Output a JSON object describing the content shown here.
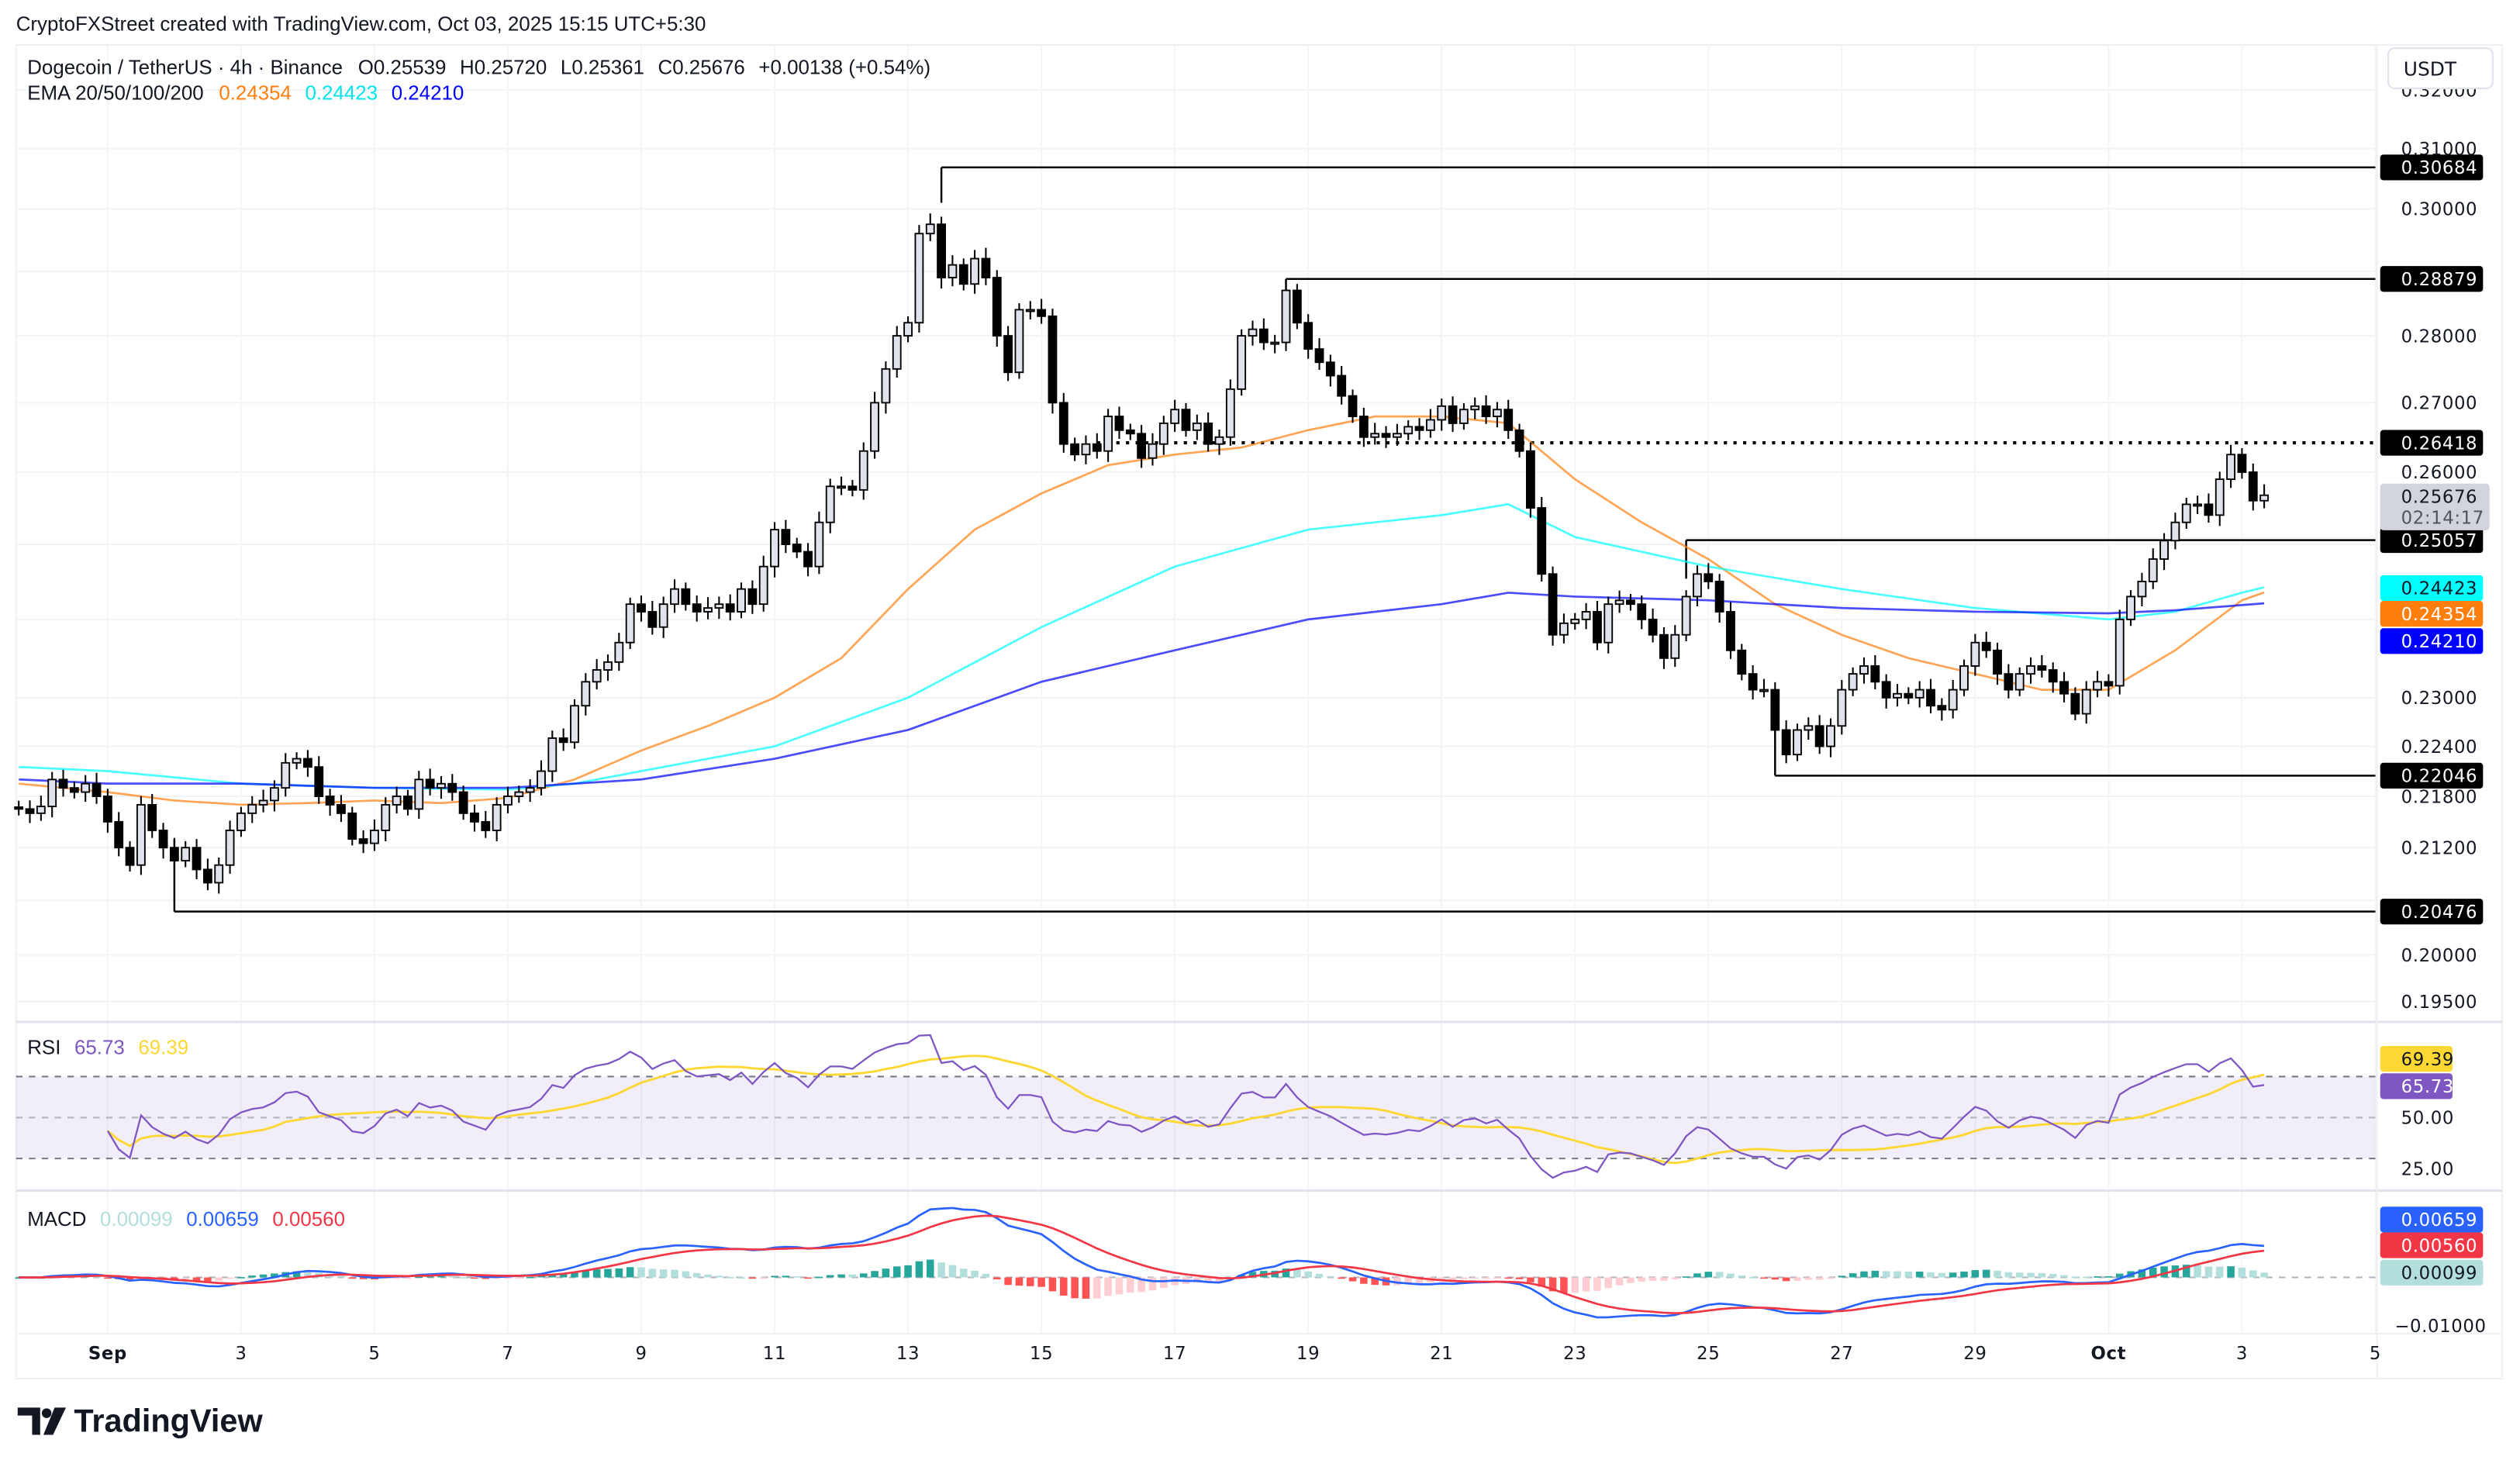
{
  "watermark": "CryptoFXStreet created with TradingView.com, Oct 03, 2025 15:15 UTC+5:30",
  "legend": {
    "symbol": "Dogecoin / TetherUS · 4h · Binance",
    "ohlc": [
      {
        "k": "O",
        "v": "0.25539"
      },
      {
        "k": "H",
        "v": "0.25720"
      },
      {
        "k": "L",
        "v": "0.25361"
      },
      {
        "k": "C",
        "v": "0.25676"
      }
    ],
    "change": "+0.00138 (+0.54%)",
    "ema_label": "EMA 20/50/100/200",
    "ema_values": [
      "0.24354",
      "0.24423",
      "0.24210"
    ]
  },
  "currency_button": "USDT",
  "brand": "TradingView",
  "colors": {
    "bull": "#e0e3eb",
    "bear": "#000000",
    "ema_orange": "#ff7f0e",
    "ema_cyan": "#00ffff",
    "ema_blue": "#0000ff",
    "rsi": "#7e57c2",
    "rsi_ma": "#fdd835",
    "macd": "#2962ff",
    "signal": "#f23645",
    "hist_up_strong": "#26a69a",
    "hist_up_weak": "#b2dfdb",
    "hist_down_strong": "#ff5252",
    "hist_down_weak": "#ffcdd2"
  },
  "chart_data": {
    "type": "candlestick",
    "timeframe": "4h",
    "scale": "log",
    "ylim": [
      0.1925,
      0.322
    ],
    "price_ticks": [
      "0.32000",
      "0.31000",
      "0.30000",
      "0.28000",
      "0.27000",
      "0.26000",
      "0.23000",
      "0.22400",
      "0.21800",
      "0.21200",
      "0.20000",
      "0.19500"
    ],
    "time_ticks": [
      {
        "label": "Sep",
        "date": "2025-09-01"
      },
      {
        "label": "3",
        "date": "2025-09-03"
      },
      {
        "label": "5",
        "date": "2025-09-05"
      },
      {
        "label": "7",
        "date": "2025-09-07"
      },
      {
        "label": "9",
        "date": "2025-09-09"
      },
      {
        "label": "11",
        "date": "2025-09-11"
      },
      {
        "label": "13",
        "date": "2025-09-13"
      },
      {
        "label": "15",
        "date": "2025-09-15"
      },
      {
        "label": "17",
        "date": "2025-09-17"
      },
      {
        "label": "19",
        "date": "2025-09-19"
      },
      {
        "label": "21",
        "date": "2025-09-21"
      },
      {
        "label": "23",
        "date": "2025-09-23"
      },
      {
        "label": "25",
        "date": "2025-09-25"
      },
      {
        "label": "27",
        "date": "2025-09-27"
      },
      {
        "label": "29",
        "date": "2025-09-29"
      },
      {
        "label": "Oct",
        "date": "2025-10-01"
      },
      {
        "label": "3",
        "date": "2025-10-03"
      },
      {
        "label": "5",
        "date": "2025-10-05"
      }
    ],
    "closes_by_day": {
      "2025-08-30": [
        0.2165,
        0.216
      ],
      "2025-08-31": [
        0.2168,
        0.22,
        0.219,
        0.2185,
        0.2195,
        0.218
      ],
      "2025-09-01": [
        0.215,
        0.212,
        0.21,
        0.217,
        0.214,
        0.212
      ],
      "2025-09-02": [
        0.2105,
        0.212,
        0.2095,
        0.208,
        0.21,
        0.214
      ],
      "2025-09-03": [
        0.216,
        0.217,
        0.2175,
        0.219,
        0.222,
        0.2225
      ],
      "2025-09-04": [
        0.2215,
        0.218,
        0.217,
        0.216,
        0.213,
        0.2125
      ],
      "2025-09-05": [
        0.214,
        0.217,
        0.218,
        0.2165,
        0.22,
        0.219
      ],
      "2025-09-06": [
        0.2195,
        0.2185,
        0.216,
        0.215,
        0.214,
        0.217
      ],
      "2025-09-07": [
        0.218,
        0.2185,
        0.219,
        0.221,
        0.225,
        0.2245
      ],
      "2025-09-08": [
        0.229,
        0.232,
        0.2335,
        0.2345,
        0.237,
        0.242
      ],
      "2025-09-09": [
        0.241,
        0.239,
        0.242,
        0.244,
        0.242,
        0.241
      ],
      "2025-09-10": [
        0.2415,
        0.242,
        0.241,
        0.244,
        0.242,
        0.247
      ],
      "2025-09-11": [
        0.252,
        0.25,
        0.249,
        0.247,
        0.253,
        0.258
      ],
      "2025-09-12": [
        0.258,
        0.2575,
        0.263,
        0.27,
        0.275,
        0.28
      ],
      "2025-09-13": [
        0.282,
        0.296,
        0.2975,
        0.289,
        0.291,
        0.288
      ],
      "2025-09-14": [
        0.292,
        0.289,
        0.28,
        0.2745,
        0.284,
        0.284
      ],
      "2025-09-15": [
        0.283,
        0.27,
        0.264,
        0.2625,
        0.264,
        0.263
      ],
      "2025-09-16": [
        0.268,
        0.266,
        0.2655,
        0.262,
        0.264,
        0.267
      ],
      "2025-09-17": [
        0.269,
        0.266,
        0.267,
        0.264,
        0.265,
        0.272
      ],
      "2025-09-18": [
        0.28,
        0.281,
        0.279,
        0.279,
        0.287,
        0.282
      ],
      "2025-09-19": [
        0.278,
        0.276,
        0.274,
        0.271,
        0.268,
        0.265
      ],
      "2025-09-20": [
        0.2655,
        0.265,
        0.2655,
        0.2665,
        0.266,
        0.2675
      ],
      "2025-09-21": [
        0.2695,
        0.267,
        0.269,
        0.2695,
        0.268,
        0.269
      ],
      "2025-09-22": [
        0.266,
        0.263,
        0.255,
        0.246,
        0.238,
        0.2395
      ],
      "2025-09-23": [
        0.24,
        0.241,
        0.237,
        0.242,
        0.2425,
        0.242
      ],
      "2025-09-24": [
        0.24,
        0.238,
        0.235,
        0.238,
        0.243,
        0.246
      ],
      "2025-09-25": [
        0.245,
        0.241,
        0.236,
        0.233,
        0.231,
        0.231
      ],
      "2025-09-26": [
        0.226,
        0.223,
        0.226,
        0.2265,
        0.224,
        0.2265
      ],
      "2025-09-27": [
        0.231,
        0.233,
        0.234,
        0.232,
        0.23,
        0.2305
      ],
      "2025-09-28": [
        0.23,
        0.231,
        0.229,
        0.2285,
        0.231,
        0.234
      ],
      "2025-09-29": [
        0.237,
        0.236,
        0.233,
        0.231,
        0.233,
        0.234
      ],
      "2025-09-30": [
        0.2335,
        0.232,
        0.2305,
        0.228,
        0.231,
        0.232
      ],
      "2025-10-01": [
        0.2315,
        0.24,
        0.243,
        0.245,
        0.248,
        0.2505
      ],
      "2025-10-02": [
        0.253,
        0.2555,
        0.2555,
        0.254,
        0.259,
        0.2625
      ],
      "2025-10-03": [
        0.26,
        0.256,
        0.25676
      ]
    },
    "ema_lines": [
      {
        "color_key": "ema_orange",
        "points": [
          [
            "2025-08-30 16:00",
            0.2195
          ],
          [
            "2025-09-01",
            0.2185
          ],
          [
            "2025-09-02",
            0.2175
          ],
          [
            "2025-09-03",
            0.217
          ],
          [
            "2025-09-04",
            0.2172
          ],
          [
            "2025-09-05",
            0.2175
          ],
          [
            "2025-09-06",
            0.2172
          ],
          [
            "2025-09-07",
            0.2178
          ],
          [
            "2025-09-08",
            0.22
          ],
          [
            "2025-09-09",
            0.2235
          ],
          [
            "2025-09-10",
            0.2265
          ],
          [
            "2025-09-11",
            0.23
          ],
          [
            "2025-09-12",
            0.235
          ],
          [
            "2025-09-13",
            0.244
          ],
          [
            "2025-09-14",
            0.252
          ],
          [
            "2025-09-15",
            0.257
          ],
          [
            "2025-09-16",
            0.261
          ],
          [
            "2025-09-17",
            0.2625
          ],
          [
            "2025-09-18",
            0.2635
          ],
          [
            "2025-09-19",
            0.266
          ],
          [
            "2025-09-20",
            0.268
          ],
          [
            "2025-09-21",
            0.268
          ],
          [
            "2025-09-22",
            0.267
          ],
          [
            "2025-09-23",
            0.259
          ],
          [
            "2025-09-24",
            0.253
          ],
          [
            "2025-09-25",
            0.248
          ],
          [
            "2025-09-26",
            0.242
          ],
          [
            "2025-09-27",
            0.238
          ],
          [
            "2025-09-28",
            0.235
          ],
          [
            "2025-09-29",
            0.233
          ],
          [
            "2025-09-30",
            0.231
          ],
          [
            "2025-10-01",
            0.231
          ],
          [
            "2025-10-02",
            0.236
          ],
          [
            "2025-10-03",
            0.2425
          ],
          [
            "2025-10-03 08:00",
            0.24354
          ]
        ]
      },
      {
        "color_key": "ema_cyan",
        "points": [
          [
            "2025-08-30 16:00",
            0.2215
          ],
          [
            "2025-09-01",
            0.221
          ],
          [
            "2025-09-03",
            0.2195
          ],
          [
            "2025-09-05",
            0.219
          ],
          [
            "2025-09-07",
            0.2188
          ],
          [
            "2025-09-08",
            0.2195
          ],
          [
            "2025-09-09",
            0.221
          ],
          [
            "2025-09-11",
            0.224
          ],
          [
            "2025-09-13",
            0.23
          ],
          [
            "2025-09-15",
            0.239
          ],
          [
            "2025-09-17",
            0.247
          ],
          [
            "2025-09-19",
            0.252
          ],
          [
            "2025-09-21",
            0.254
          ],
          [
            "2025-09-22",
            0.2555
          ],
          [
            "2025-09-23",
            0.251
          ],
          [
            "2025-09-25",
            0.247
          ],
          [
            "2025-09-27",
            0.244
          ],
          [
            "2025-09-29",
            0.2415
          ],
          [
            "2025-10-01",
            0.24
          ],
          [
            "2025-10-02",
            0.241
          ],
          [
            "2025-10-03",
            0.2435
          ],
          [
            "2025-10-03 08:00",
            0.24423
          ]
        ]
      },
      {
        "color_key": "ema_blue",
        "points": [
          [
            "2025-08-30 16:00",
            0.22
          ],
          [
            "2025-09-01",
            0.2195
          ],
          [
            "2025-09-03",
            0.2195
          ],
          [
            "2025-09-05",
            0.219
          ],
          [
            "2025-09-07",
            0.219
          ],
          [
            "2025-09-09",
            0.22
          ],
          [
            "2025-09-11",
            0.2225
          ],
          [
            "2025-09-13",
            0.226
          ],
          [
            "2025-09-15",
            0.232
          ],
          [
            "2025-09-17",
            0.236
          ],
          [
            "2025-09-19",
            0.24
          ],
          [
            "2025-09-21",
            0.242
          ],
          [
            "2025-09-22",
            0.2435
          ],
          [
            "2025-09-23",
            0.243
          ],
          [
            "2025-09-25",
            0.2425
          ],
          [
            "2025-09-27",
            0.2415
          ],
          [
            "2025-09-29",
            0.241
          ],
          [
            "2025-10-01",
            0.2408
          ],
          [
            "2025-10-02",
            0.2412
          ],
          [
            "2025-10-03 08:00",
            0.2421
          ]
        ]
      }
    ],
    "levels": [
      {
        "value": "0.30684",
        "from": "2025-09-13 12:00",
        "style": "solid"
      },
      {
        "value": "0.28879",
        "from": "2025-09-18 16:00",
        "style": "solid"
      },
      {
        "value": "0.26418",
        "from": "2025-09-15 20:00",
        "style": "dotted"
      },
      {
        "value": "0.25057",
        "from": "2025-09-24 16:00",
        "style": "solid"
      },
      {
        "value": "0.22046",
        "from": "2025-09-26 00:00",
        "style": "solid"
      },
      {
        "value": "0.20476",
        "from": "2025-09-02 00:00",
        "style": "solid"
      }
    ],
    "last_price": "0.25676",
    "countdown": "02:14:17",
    "ema_badges": [
      "0.24423",
      "0.24354",
      "0.24210"
    ],
    "rsi": {
      "label": "RSI",
      "value": "65.73",
      "ma": "69.39",
      "ticks": [
        "50.00",
        "25.00"
      ],
      "bands": [
        70,
        50,
        30
      ]
    },
    "macd": {
      "label": "MACD",
      "hist": "0.00099",
      "macd": "0.00659",
      "signal": "0.00560",
      "ticks": [
        "−0.01000"
      ]
    }
  }
}
